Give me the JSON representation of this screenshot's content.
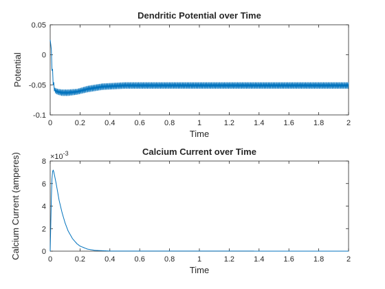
{
  "chart_data": [
    {
      "type": "line",
      "title": "Dendritic Potential over Time",
      "xlabel": "Time",
      "ylabel": "Potential",
      "xlim": [
        0,
        2
      ],
      "ylim": [
        -0.1,
        0.05
      ],
      "xticks": [
        0,
        0.2,
        0.4,
        0.6,
        0.8,
        1,
        1.2,
        1.4,
        1.6,
        1.8,
        2
      ],
      "xtick_labels": [
        "0",
        "0.2",
        "0.4",
        "0.6",
        "0.8",
        "1",
        "1.2",
        "1.4",
        "1.6",
        "1.8",
        "2"
      ],
      "yticks": [
        -0.1,
        -0.05,
        0,
        0.05
      ],
      "ytick_labels": [
        "-0.1",
        "-0.05",
        "0",
        "0.05"
      ],
      "grid": false,
      "color": "#0072BD",
      "series": [
        {
          "x": [
            0,
            0.005,
            0.01,
            0.02,
            0.03,
            0.05,
            0.08,
            0.12,
            0.18,
            0.25,
            0.35,
            0.5,
            0.7,
            1.0,
            1.5,
            2.0
          ],
          "upper": [
            0.025,
            0.02,
            0.0,
            -0.04,
            -0.055,
            -0.057,
            -0.058,
            -0.058,
            -0.057,
            -0.052,
            -0.048,
            -0.046,
            -0.046,
            -0.046,
            -0.046,
            -0.046
          ],
          "lower": [
            0.025,
            0.015,
            -0.02,
            -0.05,
            -0.063,
            -0.066,
            -0.068,
            -0.068,
            -0.066,
            -0.062,
            -0.058,
            -0.056,
            -0.056,
            -0.056,
            -0.056,
            -0.056
          ],
          "oscillation_period": 0.008
        }
      ]
    },
    {
      "type": "line",
      "title": "Calcium Current over Time",
      "xlabel": "Time",
      "ylabel": "Calcium Current (amperes)",
      "exponent_label": "×10",
      "exponent_value": "-3",
      "xlim": [
        0,
        2
      ],
      "ylim": [
        0,
        8
      ],
      "xticks": [
        0,
        0.2,
        0.4,
        0.6,
        0.8,
        1,
        1.2,
        1.4,
        1.6,
        1.8,
        2
      ],
      "xtick_labels": [
        "0",
        "0.2",
        "0.4",
        "0.6",
        "0.8",
        "1",
        "1.2",
        "1.4",
        "1.6",
        "1.8",
        "2"
      ],
      "yticks": [
        0,
        2,
        4,
        6,
        8
      ],
      "ytick_labels": [
        "0",
        "2",
        "4",
        "6",
        "8"
      ],
      "grid": false,
      "color": "#0072BD",
      "series": [
        {
          "x": [
            0,
            0.005,
            0.01,
            0.015,
            0.02,
            0.025,
            0.04,
            0.06,
            0.08,
            0.1,
            0.12,
            0.15,
            0.18,
            0.2,
            0.25,
            0.3,
            0.4,
            2.0
          ],
          "y": [
            0,
            3.0,
            6.0,
            7.0,
            7.2,
            7.0,
            6.0,
            4.5,
            3.4,
            2.5,
            1.8,
            1.1,
            0.65,
            0.45,
            0.18,
            0.07,
            0.01,
            0
          ]
        }
      ]
    }
  ]
}
